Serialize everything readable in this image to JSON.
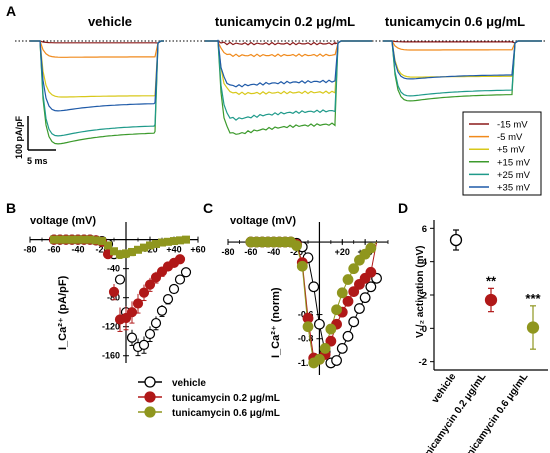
{
  "panel_letters": {
    "A": "A",
    "B": "B",
    "C": "C",
    "D": "D"
  },
  "colors": {
    "vehicle": "#ffffff",
    "tunicamycin_0_2": "#b01818",
    "tunicamycin_0_6": "#8f961e",
    "trace_-15": "#8b1a1a",
    "trace_-5": "#f08a1c",
    "trace_+5": "#d8c81a",
    "trace_+15": "#3c9a2c",
    "trace_+25": "#1f9a8a",
    "trace_+35": "#1f5aa8"
  },
  "panelA": {
    "titles": [
      "vehicle",
      "tunicamycin 0.2 μg/mL",
      "tunicamycin 0.6 μg/mL"
    ],
    "scale_y_label": "100 pA/pF",
    "scale_x_label": "5 ms",
    "legend": [
      "-15 mV",
      "-5 mV",
      "+5 mV",
      "+15 mV",
      "+25 mV",
      "+35 mV"
    ]
  },
  "chart_data": [
    {
      "panel": "A",
      "type": "line",
      "description_axis": "current traces (pA/pF) vs time, steady-state amplitude per voltage step",
      "series_voltages": [
        "-15 mV",
        "-5 mV",
        "+5 mV",
        "+15 mV",
        "+25 mV",
        "+35 mV"
      ],
      "groups": [
        {
          "name": "vehicle",
          "steady_amplitude": [
            -2,
            -18,
            -62,
            -103,
            -95,
            -70
          ]
        },
        {
          "name": "tunicamycin 0.2 μg/mL",
          "steady_amplitude": [
            -3,
            -16,
            -58,
            -93,
            -78,
            -45
          ]
        },
        {
          "name": "tunicamycin 0.6 μg/mL",
          "steady_amplitude": [
            -1,
            -10,
            -40,
            -60,
            -55,
            -38
          ]
        }
      ]
    },
    {
      "panel": "B",
      "type": "scatter",
      "title": "voltage (mV)",
      "ylabel": "I_Ca²⁺ (pA/pF)",
      "xlim": [
        -80,
        60
      ],
      "ylim": [
        -170,
        5
      ],
      "xticks": [
        "-80",
        "-60",
        "-40",
        "-20",
        "+20",
        "+40",
        "+60"
      ],
      "yticks": [
        "-40",
        "-80",
        "-120",
        "-160"
      ],
      "x": [
        -60,
        -55,
        -50,
        -45,
        -40,
        -35,
        -30,
        -25,
        -20,
        -15,
        -10,
        -5,
        0,
        5,
        10,
        15,
        20,
        25,
        30,
        35,
        40,
        45,
        50
      ],
      "series": [
        {
          "name": "vehicle",
          "values": [
            0,
            0,
            0,
            0,
            0,
            0,
            0,
            -1,
            -2,
            -6,
            -20,
            -55,
            -100,
            -135,
            -148,
            -145,
            -130,
            -115,
            -98,
            -82,
            -68,
            -55,
            -45
          ]
        },
        {
          "name": "tunicamycin 0.2 μg/mL",
          "values": [
            0,
            0,
            0,
            0,
            0,
            0,
            0,
            -1,
            -3,
            -20,
            -72,
            -110,
            -108,
            -100,
            -88,
            -73,
            -62,
            -52,
            -44,
            -37,
            -32,
            -27,
            0
          ]
        },
        {
          "name": "tunicamycin 0.6 μg/mL",
          "values": [
            0,
            0,
            0,
            0,
            0,
            0,
            0,
            -1,
            -2,
            -8,
            -16,
            -20,
            -19,
            -17,
            -14,
            -11,
            -8,
            -6,
            -4,
            -3,
            -2,
            -1,
            0
          ]
        }
      ],
      "legend": [
        "vehicle",
        "tunicamycin 0.2 μg/mL",
        "tunicamycin 0.6 μg/mL"
      ]
    },
    {
      "panel": "C",
      "type": "scatter",
      "title": "voltage (mV)",
      "ylabel": "I_Ca²⁺ (norm)",
      "xlim": [
        -80,
        60
      ],
      "ylim": [
        -1.1,
        0.05
      ],
      "xticks": [
        "-80",
        "-60",
        "-40",
        "-20",
        "+20",
        "+40"
      ],
      "yticks": [
        "-0.6",
        "-0.8",
        "-1.0"
      ],
      "x": [
        -60,
        -55,
        -50,
        -45,
        -40,
        -35,
        -30,
        -25,
        -20,
        -15,
        -10,
        -5,
        0,
        5,
        10,
        15,
        20,
        25,
        30,
        35,
        40,
        45,
        50
      ],
      "series": [
        {
          "name": "vehicle",
          "values": [
            0,
            0,
            0,
            0,
            0,
            0,
            0,
            0,
            -0.01,
            -0.04,
            -0.13,
            -0.37,
            -0.68,
            -0.91,
            -1.0,
            -0.98,
            -0.88,
            -0.78,
            -0.66,
            -0.55,
            -0.46,
            -0.37,
            -0.3
          ]
        },
        {
          "name": "tunicamycin 0.2 μg/mL",
          "values": [
            0,
            0,
            0,
            0,
            0,
            0,
            0,
            0,
            -0.02,
            -0.17,
            -0.63,
            -0.96,
            -0.97,
            -0.93,
            -0.82,
            -0.68,
            -0.58,
            -0.49,
            -0.41,
            -0.35,
            -0.3,
            -0.25,
            0
          ]
        },
        {
          "name": "tunicamycin 0.6 μg/mL",
          "values": [
            0,
            0,
            0,
            0,
            0,
            0,
            0,
            0,
            -0.03,
            -0.2,
            -0.7,
            -1.0,
            -0.97,
            -0.88,
            -0.72,
            -0.56,
            -0.42,
            -0.31,
            -0.22,
            -0.15,
            -0.1,
            -0.05,
            0
          ]
        }
      ]
    },
    {
      "panel": "D",
      "type": "scatter",
      "ylabel": "V₁/₂ activation (mV)",
      "ylim": [
        -2.5,
        6.5
      ],
      "yticks": [
        "6",
        "4",
        "2",
        "0",
        "-2"
      ],
      "categories": [
        "vehicle",
        "tunicamycin 0.2 μg/mL",
        "tunicamycin 0.6 μg/mL"
      ],
      "values": [
        5.3,
        1.7,
        0.05
      ],
      "error": [
        0.6,
        0.7,
        1.3
      ],
      "annotations": [
        "",
        "**",
        "***"
      ]
    }
  ]
}
